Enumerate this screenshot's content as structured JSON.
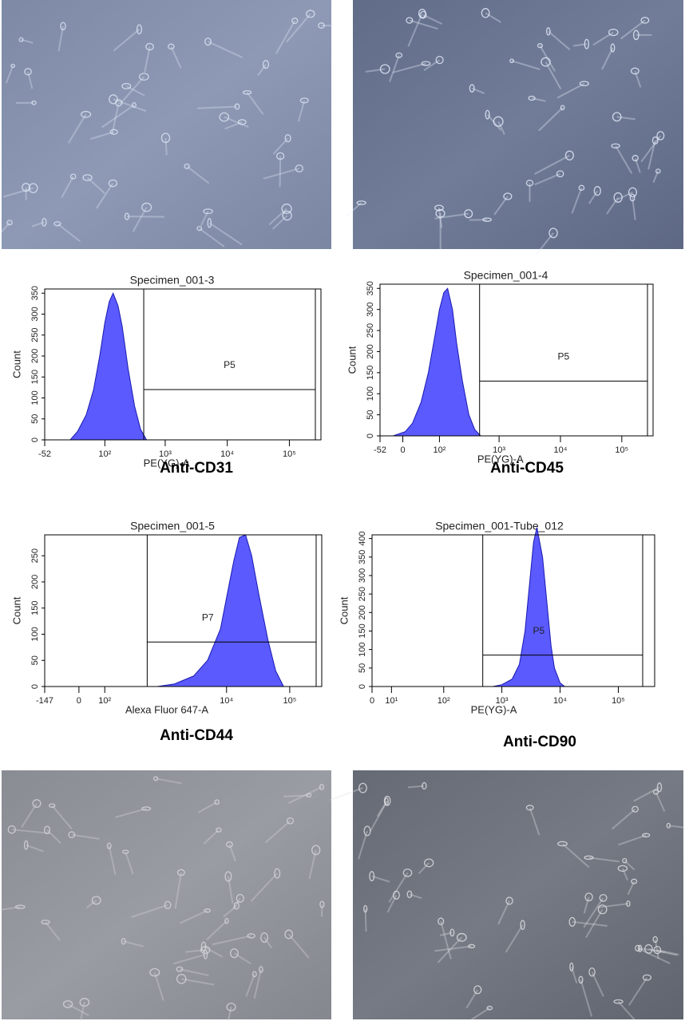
{
  "chart_data": [
    {
      "type": "histogram",
      "title": "Specimen_001-3",
      "xlabel": "PE(YG)-A",
      "ylabel": "Count",
      "caption": "Anti-CD31",
      "xscale": "logicle",
      "color": "#5a5aff",
      "x": [
        5,
        20,
        40,
        60,
        80,
        100,
        120,
        140,
        170,
        200,
        250,
        320,
        400,
        500
      ],
      "values": [
        0,
        20,
        60,
        120,
        200,
        280,
        330,
        350,
        320,
        270,
        170,
        80,
        25,
        0
      ],
      "xlim": [
        -52,
        262144
      ],
      "xticks": [
        -52,
        {
          "value": 100,
          "label": "10²"
        },
        {
          "value": 1000,
          "label": "10³"
        },
        {
          "value": 10000,
          "label": "10⁴"
        },
        {
          "value": 100000,
          "label": "10⁵"
        }
      ],
      "ylim": [
        0,
        360
      ],
      "yticks": [
        0,
        50,
        100,
        150,
        200,
        250,
        300,
        350
      ],
      "gate": {
        "label": "P5",
        "x": 450,
        "y": 120
      }
    },
    {
      "type": "histogram",
      "title": "Specimen_001-4",
      "xlabel": "PE(YG)-A",
      "ylabel": "Count",
      "caption": "Anti-CD45",
      "xscale": "logicle",
      "color": "#5a5aff",
      "x": [
        -20,
        5,
        20,
        40,
        60,
        80,
        100,
        120,
        140,
        170,
        200,
        250,
        320,
        400,
        500
      ],
      "values": [
        0,
        10,
        30,
        80,
        150,
        230,
        300,
        340,
        350,
        300,
        220,
        130,
        50,
        15,
        0
      ],
      "xlim": [
        -52,
        262144
      ],
      "xticks": [
        -52,
        0,
        {
          "value": 100,
          "label": "10²"
        },
        {
          "value": 1000,
          "label": "10³"
        },
        {
          "value": 10000,
          "label": "10⁴"
        },
        {
          "value": 100000,
          "label": "10⁵"
        }
      ],
      "ylim": [
        0,
        360
      ],
      "yticks": [
        0,
        50,
        100,
        150,
        200,
        250,
        300,
        350
      ],
      "gate": {
        "label": "P5",
        "x": 480,
        "y": 130
      }
    },
    {
      "type": "histogram",
      "title": "Specimen_001-5",
      "xlabel": "Alexa Fluor 647-A",
      "ylabel": "Count",
      "caption": "Anti-CD44",
      "xscale": "logicle",
      "color": "#5a5aff",
      "x": [
        800,
        1500,
        3000,
        5000,
        8000,
        10000,
        13000,
        16000,
        20000,
        25000,
        32000,
        45000,
        60000,
        80000
      ],
      "values": [
        0,
        5,
        20,
        50,
        110,
        170,
        240,
        285,
        290,
        250,
        180,
        90,
        30,
        0
      ],
      "xlim": [
        -147,
        262144
      ],
      "xticks": [
        -147,
        0,
        {
          "value": 100,
          "label": "10²"
        },
        {
          "value": 10000,
          "label": "10⁴"
        },
        {
          "value": 100000,
          "label": "10⁵"
        }
      ],
      "ylim": [
        0,
        290
      ],
      "yticks": [
        0,
        50,
        100,
        150,
        200,
        250
      ],
      "gate": {
        "label": "P7",
        "x": 550,
        "y": 85
      }
    },
    {
      "type": "histogram",
      "title": "Specimen_001-Tube_012",
      "xlabel": "PE(YG)-A",
      "ylabel": "Count",
      "caption": "Anti-CD90",
      "xscale": "logicle",
      "color": "#5a5aff",
      "x": [
        700,
        1000,
        1500,
        2000,
        2500,
        3000,
        3500,
        4000,
        5000,
        6000,
        7000,
        8000,
        10000,
        12000
      ],
      "values": [
        0,
        5,
        20,
        60,
        150,
        280,
        390,
        430,
        350,
        220,
        110,
        50,
        10,
        0
      ],
      "xlim": [
        0,
        262144
      ],
      "xticks": [
        0,
        {
          "value": 10,
          "label": "10¹"
        },
        {
          "value": 100,
          "label": "10²"
        },
        {
          "value": 1000,
          "label": "10³"
        },
        {
          "value": 10000,
          "label": "10⁴"
        },
        {
          "value": 100000,
          "label": "10⁵"
        }
      ],
      "ylim": [
        0,
        410
      ],
      "yticks": [
        0,
        50,
        100,
        150,
        200,
        250,
        300,
        350,
        400
      ],
      "gate": {
        "label": "P5",
        "x": 470,
        "y": 85
      }
    }
  ]
}
